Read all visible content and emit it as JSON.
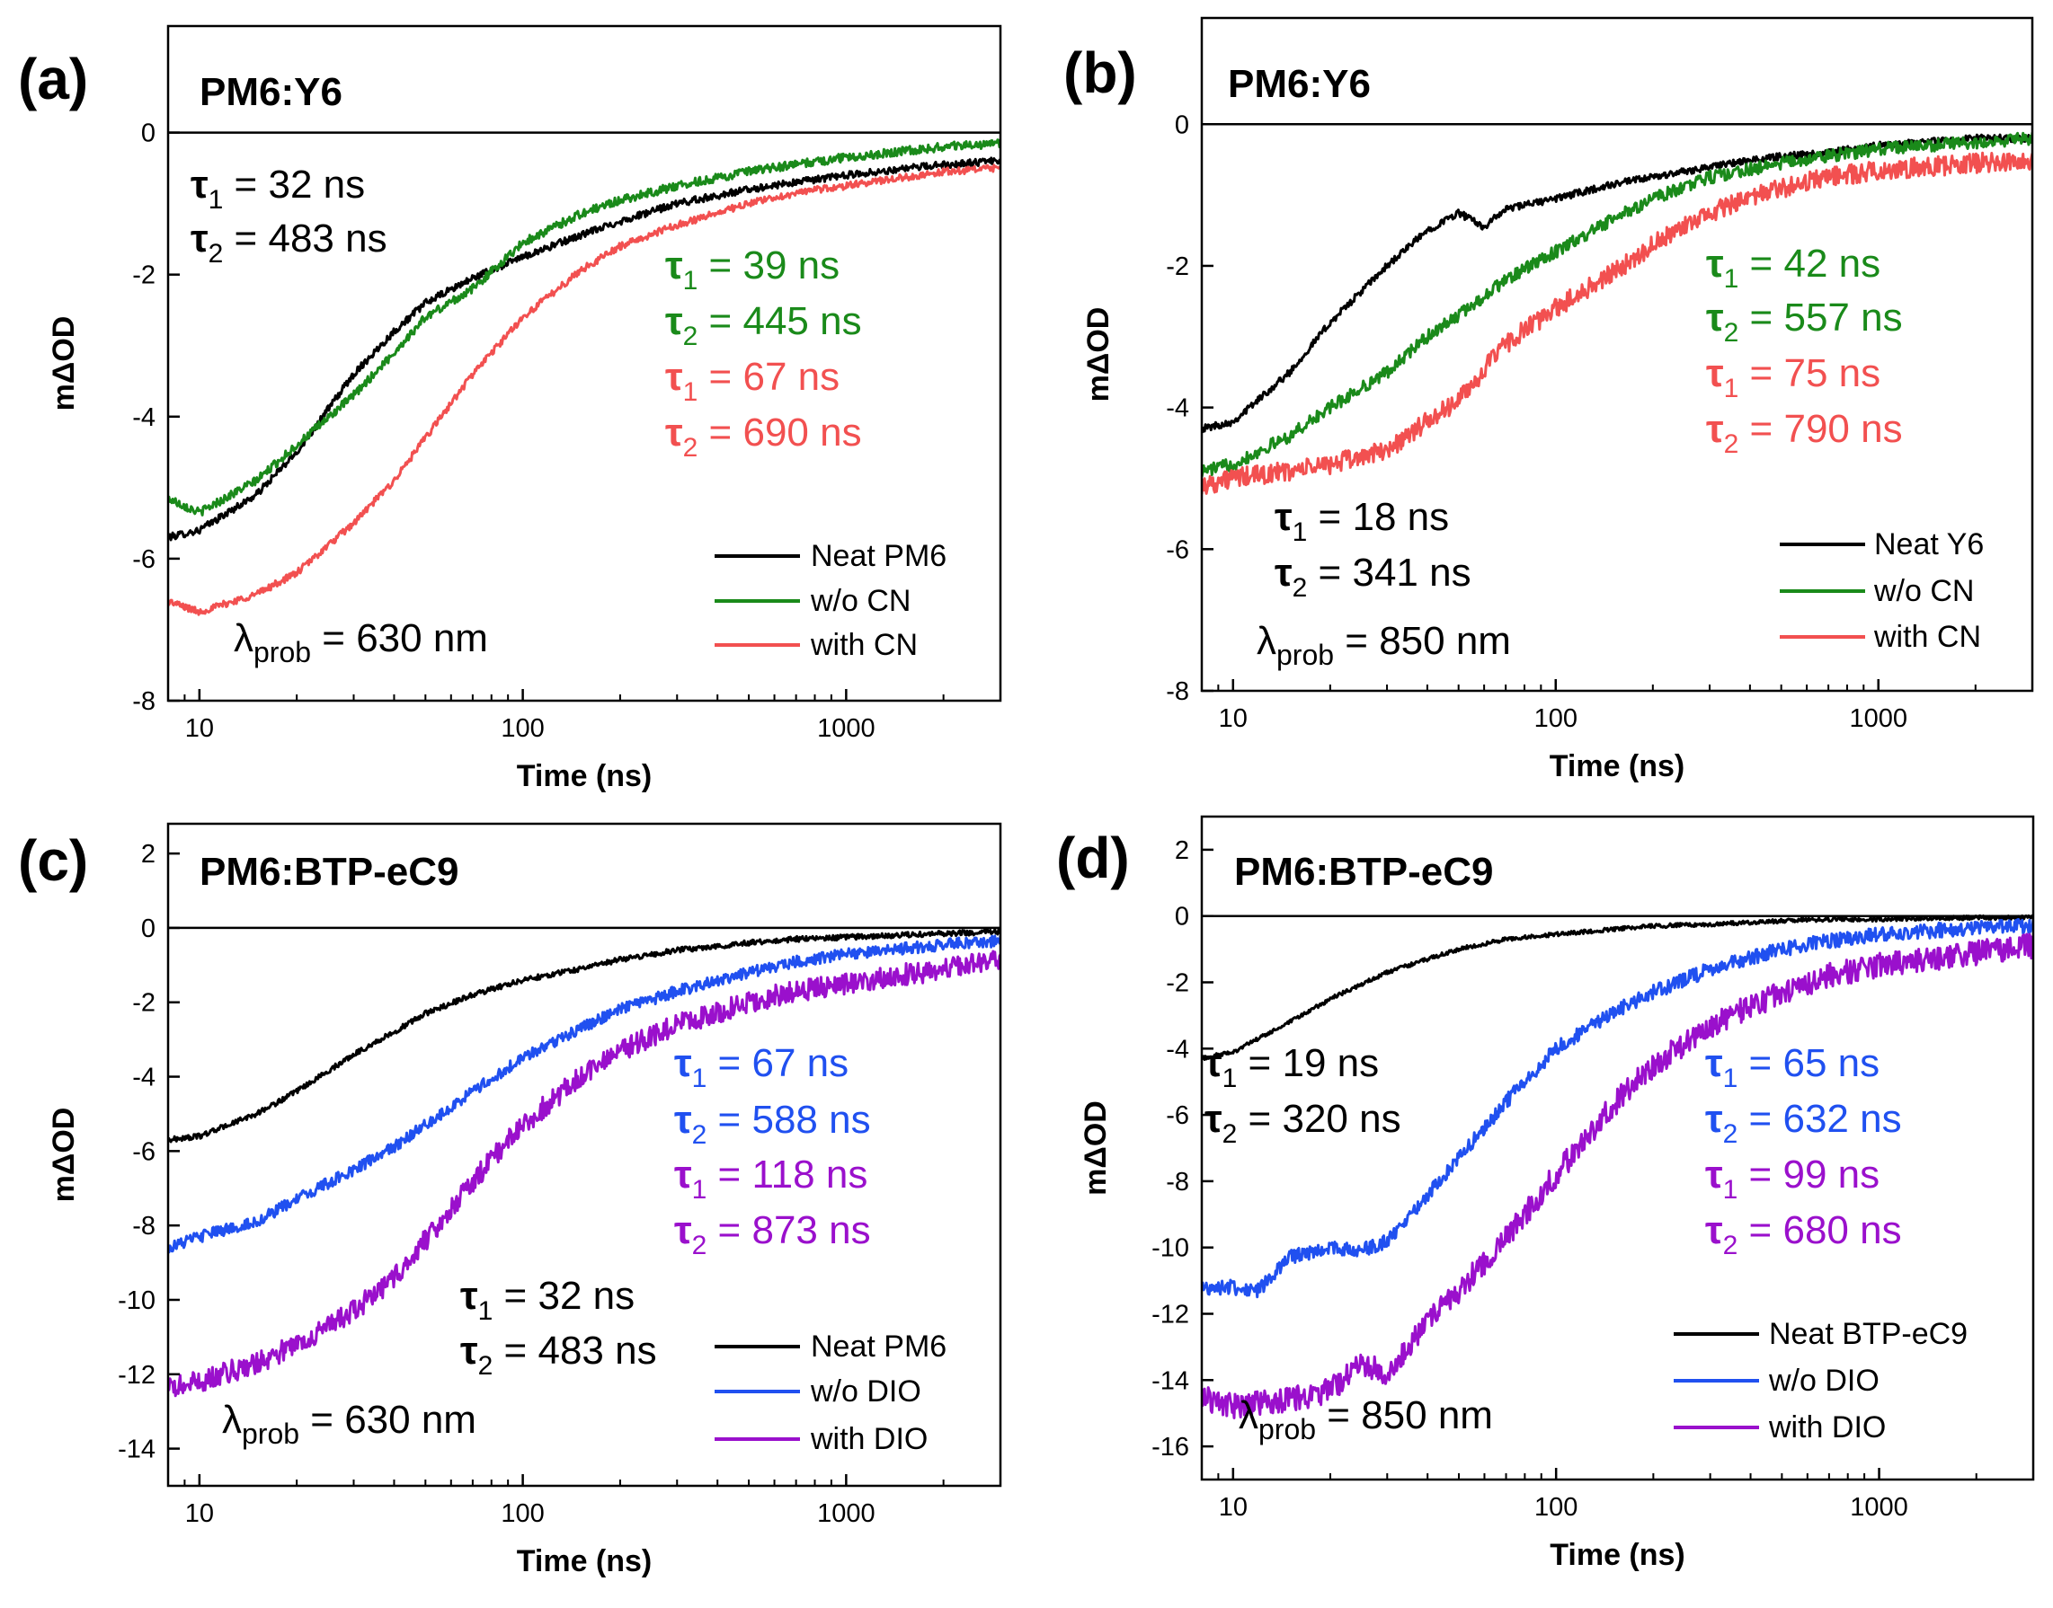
{
  "colors": {
    "black": "#000000",
    "green": "#1a8a1a",
    "red": "#f25050",
    "blue": "#2050f0",
    "purple": "#9a10cc"
  },
  "chart_data": [
    {
      "type": "line",
      "panel": "(a)",
      "title": "PM6:Y6",
      "xlabel": "Time (ns)",
      "ylabel": "mΔOD",
      "xscale": "log",
      "xlim": [
        8,
        3000
      ],
      "ylim": [
        -8,
        1.5
      ],
      "xticks": [
        10,
        100,
        1000
      ],
      "xtick_labels": [
        "10",
        "100",
        "1000"
      ],
      "yticks": [
        0,
        -2,
        -4,
        -6,
        -8
      ],
      "ytick_labels": [
        "0",
        "-2",
        "-4",
        "-6",
        "-8"
      ],
      "probe_prefix": "λ",
      "probe_sub": "prob",
      "probe_value": " = 630 nm",
      "series": [
        {
          "name": "Neat PM6",
          "color_key": "black",
          "noise": 0.05,
          "x": [
            8,
            10,
            15,
            20,
            30,
            40,
            50,
            70,
            100,
            150,
            200,
            300,
            500,
            700,
            1000,
            2000,
            3000
          ],
          "y": [
            -5.7,
            -5.6,
            -5.1,
            -4.5,
            -3.4,
            -2.8,
            -2.4,
            -2.05,
            -1.75,
            -1.45,
            -1.25,
            -1.0,
            -0.8,
            -0.7,
            -0.6,
            -0.45,
            -0.4
          ]
        },
        {
          "name": "w/o CN",
          "color_key": "green",
          "noise": 0.06,
          "x": [
            8,
            10,
            15,
            20,
            30,
            40,
            50,
            70,
            100,
            150,
            200,
            300,
            500,
            700,
            1000,
            2000,
            3000
          ],
          "y": [
            -5.15,
            -5.35,
            -4.9,
            -4.4,
            -3.7,
            -3.1,
            -2.6,
            -2.2,
            -1.55,
            -1.15,
            -0.95,
            -0.75,
            -0.55,
            -0.45,
            -0.35,
            -0.2,
            -0.15
          ]
        },
        {
          "name": "with CN",
          "color_key": "red",
          "noise": 0.05,
          "x": [
            8,
            10,
            15,
            20,
            30,
            40,
            50,
            70,
            100,
            150,
            200,
            300,
            500,
            700,
            1000,
            2000,
            3000
          ],
          "y": [
            -6.6,
            -6.75,
            -6.5,
            -6.2,
            -5.5,
            -4.9,
            -4.3,
            -3.4,
            -2.6,
            -1.95,
            -1.6,
            -1.3,
            -1.0,
            -0.85,
            -0.75,
            -0.55,
            -0.5
          ]
        }
      ],
      "annotations": [
        {
          "color_key": "black",
          "sym": "τ",
          "sub": "1",
          "text": " = 32 ns"
        },
        {
          "color_key": "black",
          "sym": "τ",
          "sub": "2",
          "text": " = 483 ns"
        },
        {
          "color_key": "green",
          "sym": "τ",
          "sub": "1",
          "text": " = 39 ns"
        },
        {
          "color_key": "green",
          "sym": "τ",
          "sub": "2",
          "text": " = 445 ns"
        },
        {
          "color_key": "red",
          "sym": "τ",
          "sub": "1",
          "text": " = 67 ns"
        },
        {
          "color_key": "red",
          "sym": "τ",
          "sub": "2",
          "text": " = 690 ns"
        }
      ]
    },
    {
      "type": "line",
      "panel": "(b)",
      "title": "PM6:Y6",
      "xlabel": "Time (ns)",
      "ylabel": "mΔOD",
      "xscale": "log",
      "xlim": [
        8,
        3000
      ],
      "ylim": [
        -8,
        1.5
      ],
      "xticks": [
        10,
        100,
        1000
      ],
      "xtick_labels": [
        "10",
        "100",
        "1000"
      ],
      "yticks": [
        0,
        -2,
        -4,
        -6,
        -8
      ],
      "ytick_labels": [
        "0",
        "-2",
        "-4",
        "-6",
        "-8"
      ],
      "probe_prefix": "λ",
      "probe_sub": "prob",
      "probe_value": " = 850 nm",
      "series": [
        {
          "name": "Neat Y6",
          "color_key": "black",
          "noise": 0.05,
          "x": [
            8,
            10,
            15,
            20,
            30,
            40,
            50,
            60,
            70,
            100,
            150,
            200,
            300,
            500,
            700,
            1000,
            2000,
            3000
          ],
          "y": [
            -4.3,
            -4.2,
            -3.5,
            -2.8,
            -2.0,
            -1.5,
            -1.25,
            -1.45,
            -1.2,
            -1.05,
            -0.85,
            -0.75,
            -0.6,
            -0.45,
            -0.4,
            -0.3,
            -0.2,
            -0.2
          ]
        },
        {
          "name": "w/o CN",
          "color_key": "green",
          "noise": 0.09,
          "x": [
            8,
            10,
            15,
            20,
            30,
            40,
            50,
            70,
            100,
            150,
            200,
            300,
            500,
            700,
            1000,
            2000,
            3000
          ],
          "y": [
            -4.9,
            -4.8,
            -4.4,
            -4.0,
            -3.5,
            -3.0,
            -2.7,
            -2.2,
            -1.8,
            -1.35,
            -1.05,
            -0.75,
            -0.55,
            -0.45,
            -0.35,
            -0.25,
            -0.2
          ]
        },
        {
          "name": "with CN",
          "color_key": "red",
          "noise": 0.14,
          "x": [
            8,
            10,
            15,
            20,
            30,
            40,
            50,
            70,
            100,
            150,
            200,
            300,
            500,
            700,
            1000,
            2000,
            3000
          ],
          "y": [
            -5.1,
            -5.0,
            -4.9,
            -4.8,
            -4.6,
            -4.2,
            -3.9,
            -3.1,
            -2.6,
            -2.1,
            -1.7,
            -1.25,
            -0.9,
            -0.75,
            -0.65,
            -0.55,
            -0.5
          ]
        }
      ],
      "annotations": [
        {
          "color_key": "black",
          "sym": "τ",
          "sub": "1",
          "text": " = 18 ns"
        },
        {
          "color_key": "black",
          "sym": "τ",
          "sub": "2",
          "text": " = 341 ns"
        },
        {
          "color_key": "green",
          "sym": "τ",
          "sub": "1",
          "text": " = 42 ns"
        },
        {
          "color_key": "green",
          "sym": "τ",
          "sub": "2",
          "text": " = 557 ns"
        },
        {
          "color_key": "red",
          "sym": "τ",
          "sub": "1",
          "text": " = 75 ns"
        },
        {
          "color_key": "red",
          "sym": "τ",
          "sub": "2",
          "text": " = 790 ns"
        }
      ]
    },
    {
      "type": "line",
      "panel": "(c)",
      "title": "PM6:BTP-eC9",
      "xlabel": "Time (ns)",
      "ylabel": "mΔOD",
      "xscale": "log",
      "xlim": [
        8,
        3000
      ],
      "ylim": [
        -15,
        2.8
      ],
      "xticks": [
        10,
        100,
        1000
      ],
      "xtick_labels": [
        "10",
        "100",
        "1000"
      ],
      "yticks": [
        2,
        0,
        -2,
        -4,
        -6,
        -8,
        -10,
        -12,
        -14
      ],
      "ytick_labels": [
        "2",
        "0",
        "-2",
        "-4",
        "-6",
        "-8",
        "-10",
        "-12",
        "-14"
      ],
      "probe_prefix": "λ",
      "probe_sub": "prob",
      "probe_value": " = 630 nm",
      "series": [
        {
          "name": "Neat PM6",
          "color_key": "black",
          "noise": 0.07,
          "x": [
            8,
            10,
            15,
            20,
            30,
            40,
            50,
            70,
            100,
            150,
            200,
            300,
            500,
            700,
            1000,
            2000,
            3000
          ],
          "y": [
            -5.7,
            -5.6,
            -5.0,
            -4.4,
            -3.4,
            -2.8,
            -2.3,
            -1.8,
            -1.4,
            -1.1,
            -0.85,
            -0.6,
            -0.4,
            -0.3,
            -0.25,
            -0.15,
            -0.1
          ]
        },
        {
          "name": "w/o DIO",
          "color_key": "blue",
          "noise": 0.16,
          "x": [
            8,
            10,
            15,
            20,
            30,
            40,
            50,
            70,
            100,
            150,
            200,
            300,
            500,
            700,
            1000,
            2000,
            3000
          ],
          "y": [
            -8.6,
            -8.3,
            -7.9,
            -7.3,
            -6.5,
            -5.9,
            -5.3,
            -4.4,
            -3.5,
            -2.7,
            -2.2,
            -1.7,
            -1.2,
            -0.9,
            -0.7,
            -0.45,
            -0.35
          ]
        },
        {
          "name": "with DIO",
          "color_key": "purple",
          "noise": 0.3,
          "x": [
            8,
            10,
            15,
            20,
            30,
            40,
            50,
            70,
            100,
            150,
            200,
            300,
            500,
            700,
            1000,
            2000,
            3000
          ],
          "y": [
            -12.4,
            -12.2,
            -11.7,
            -11.2,
            -10.3,
            -9.4,
            -8.4,
            -6.8,
            -5.3,
            -4.0,
            -3.3,
            -2.6,
            -2.0,
            -1.7,
            -1.5,
            -1.1,
            -0.9
          ]
        }
      ],
      "annotations": [
        {
          "color_key": "blue",
          "sym": "τ",
          "sub": "1",
          "text": " = 67 ns"
        },
        {
          "color_key": "blue",
          "sym": "τ",
          "sub": "2",
          "text": " = 588 ns"
        },
        {
          "color_key": "purple",
          "sym": "τ",
          "sub": "1",
          "text": " = 118 ns"
        },
        {
          "color_key": "purple",
          "sym": "τ",
          "sub": "2",
          "text": " = 873 ns"
        },
        {
          "color_key": "black",
          "sym": "τ",
          "sub": "1",
          "text": " = 32 ns"
        },
        {
          "color_key": "black",
          "sym": "τ",
          "sub": "2",
          "text": " = 483 ns"
        }
      ]
    },
    {
      "type": "line",
      "panel": "(d)",
      "title": "PM6:BTP-eC9",
      "xlabel": "Time (ns)",
      "ylabel": "mΔOD",
      "xscale": "log",
      "xlim": [
        8,
        3000
      ],
      "ylim": [
        -17,
        3
      ],
      "xticks": [
        10,
        100,
        1000
      ],
      "xtick_labels": [
        "10",
        "100",
        "1000"
      ],
      "yticks": [
        2,
        0,
        -2,
        -4,
        -6,
        -8,
        -10,
        -12,
        -14,
        -16
      ],
      "ytick_labels": [
        "2",
        "0",
        "-2",
        "-4",
        "-6",
        "-8",
        "-10",
        "-12",
        "-14",
        "-16"
      ],
      "probe_prefix": "λ",
      "probe_sub": "prob",
      "probe_value": " = 850 nm",
      "series": [
        {
          "name": "Neat BTP-eC9",
          "color_key": "black",
          "noise": 0.06,
          "x": [
            8,
            10,
            15,
            20,
            30,
            40,
            50,
            70,
            100,
            150,
            200,
            300,
            500,
            700,
            1000,
            2000,
            3000
          ],
          "y": [
            -4.3,
            -4.1,
            -3.2,
            -2.5,
            -1.7,
            -1.3,
            -1.0,
            -0.7,
            -0.55,
            -0.4,
            -0.3,
            -0.25,
            -0.15,
            -0.1,
            -0.1,
            -0.05,
            -0.05
          ]
        },
        {
          "name": "w/o DIO",
          "color_key": "blue",
          "noise": 0.22,
          "x": [
            8,
            10,
            12,
            15,
            20,
            25,
            30,
            40,
            50,
            70,
            100,
            150,
            200,
            300,
            500,
            700,
            1000,
            2000,
            3000
          ],
          "y": [
            -11.2,
            -11.2,
            -11.3,
            -10.3,
            -10.0,
            -10.1,
            -9.8,
            -8.4,
            -7.3,
            -5.6,
            -4.0,
            -2.9,
            -2.3,
            -1.6,
            -1.0,
            -0.75,
            -0.55,
            -0.35,
            -0.3
          ]
        },
        {
          "name": "with DIO",
          "color_key": "purple",
          "noise": 0.38,
          "x": [
            8,
            10,
            15,
            20,
            25,
            30,
            40,
            50,
            70,
            100,
            150,
            200,
            300,
            500,
            700,
            1000,
            2000,
            3000
          ],
          "y": [
            -14.5,
            -14.8,
            -14.6,
            -14.3,
            -13.5,
            -13.8,
            -12.2,
            -11.3,
            -9.7,
            -7.8,
            -5.7,
            -4.5,
            -3.3,
            -2.3,
            -1.8,
            -1.5,
            -1.1,
            -0.9
          ]
        }
      ],
      "annotations": [
        {
          "color_key": "black",
          "sym": "τ",
          "sub": "1",
          "text": " = 19 ns"
        },
        {
          "color_key": "black",
          "sym": "τ",
          "sub": "2",
          "text": " = 320 ns"
        },
        {
          "color_key": "blue",
          "sym": "τ",
          "sub": "1",
          "text": " = 65 ns"
        },
        {
          "color_key": "blue",
          "sym": "τ",
          "sub": "2",
          "text": " = 632 ns"
        },
        {
          "color_key": "purple",
          "sym": "τ",
          "sub": "1",
          "text": " = 99 ns"
        },
        {
          "color_key": "purple",
          "sym": "τ",
          "sub": "2",
          "text": " = 680 ns"
        }
      ]
    }
  ]
}
